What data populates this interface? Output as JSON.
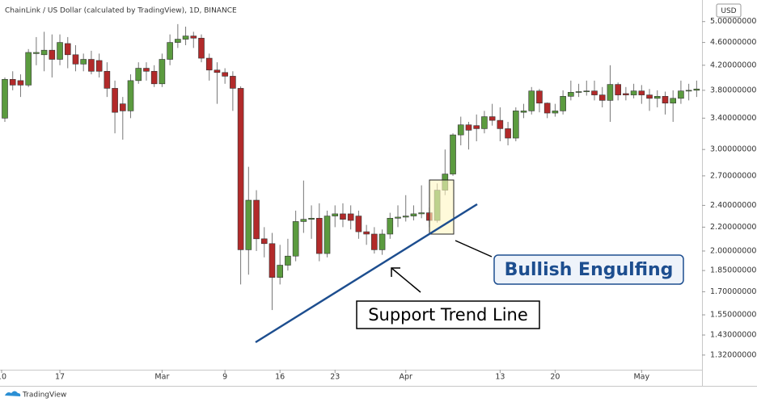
{
  "chart_data": {
    "type": "candlestick",
    "title": "ChainLink / US Dollar (calculated by TradingView), 1D, BINANCE",
    "currency": "USD",
    "logo_text": "TradingView",
    "annotations": [
      "Bullish Engulfing",
      "Support Trend Line"
    ],
    "log_scale": true,
    "grid": false,
    "up_color": "#5b9b3f",
    "down_color": "#b22a2a",
    "ylim": [
      1.245,
      5.45
    ],
    "yticks": [
      {
        "value": 1.32,
        "label": "1.32000000"
      },
      {
        "value": 1.43,
        "label": "1.43000000"
      },
      {
        "value": 1.55,
        "label": "1.55000000"
      },
      {
        "value": 1.7,
        "label": "1.70000000"
      },
      {
        "value": 1.85,
        "label": "1.85000000"
      },
      {
        "value": 2,
        "label": "2.00000000"
      },
      {
        "value": 2.2,
        "label": "2.20000000"
      },
      {
        "value": 2.4,
        "label": "2.40000000"
      },
      {
        "value": 2.7,
        "label": "2.70000000"
      },
      {
        "value": 3,
        "label": "3.00000000"
      },
      {
        "value": 3.4,
        "label": "3.40000000"
      },
      {
        "value": 3.8,
        "label": "3.80000000"
      },
      {
        "value": 4.2,
        "label": "4.20000000"
      },
      {
        "value": 4.6,
        "label": "4.60000000"
      },
      {
        "value": 5,
        "label": "5.00000000"
      }
    ],
    "categories": [
      "10",
      null,
      null,
      null,
      null,
      null,
      null,
      "17",
      null,
      null,
      null,
      null,
      null,
      null,
      null,
      null,
      null,
      null,
      null,
      null,
      "Mar",
      null,
      null,
      null,
      null,
      null,
      null,
      null,
      "9",
      null,
      null,
      null,
      null,
      null,
      null,
      "16",
      null,
      null,
      null,
      null,
      null,
      null,
      "23",
      null,
      null,
      null,
      null,
      null,
      null,
      null,
      null,
      "Apr",
      null,
      null,
      null,
      null,
      null,
      null,
      null,
      null,
      null,
      null,
      null,
      "13",
      null,
      null,
      null,
      null,
      null,
      null,
      "20",
      null,
      null,
      null,
      null,
      null,
      null,
      null,
      null,
      null,
      null,
      "May",
      null,
      null,
      null,
      null,
      null,
      null,
      null
    ],
    "open": [
      3.4,
      3.97,
      3.95,
      3.88,
      4.4,
      4.38,
      4.46,
      4.3,
      4.58,
      4.38,
      4.22,
      4.3,
      4.28,
      4.1,
      3.83,
      3.6,
      3.5,
      3.95,
      4.15,
      4.1,
      3.9,
      4.3,
      4.6,
      4.66,
      4.72,
      4.68,
      4.32,
      4.12,
      4.08,
      4.02,
      3.83,
      2.01,
      2.45,
      2.1,
      2.06,
      1.8,
      1.89,
      1.96,
      2.25,
      2.27,
      2.28,
      1.98,
      2.3,
      2.32,
      2.32,
      2.3,
      2.16,
      2.14,
      2.01,
      2.14,
      2.28,
      2.29,
      2.3,
      2.32,
      2.33,
      2.26,
      2.55,
      2.72,
      3.18,
      3.31,
      3.3,
      3.26,
      3.42,
      3.37,
      3.26,
      3.14,
      3.48,
      3.5,
      3.79,
      3.61,
      3.47,
      3.5,
      3.71,
      3.77,
      3.78,
      3.79,
      3.73,
      3.65,
      3.89,
      3.75,
      3.73,
      3.79,
      3.73,
      3.68,
      3.71,
      3.61,
      3.68,
      3.79,
      3.8
    ],
    "high": [
      4.0,
      4.1,
      4.05,
      4.48,
      4.7,
      4.8,
      4.75,
      4.75,
      4.7,
      4.55,
      4.4,
      4.45,
      4.4,
      4.25,
      3.95,
      3.7,
      4.05,
      4.25,
      4.25,
      4.2,
      4.4,
      4.75,
      4.95,
      4.9,
      4.8,
      4.75,
      4.4,
      4.25,
      4.15,
      4.1,
      3.86,
      2.8,
      2.55,
      2.2,
      2.15,
      2.05,
      2.1,
      2.35,
      2.65,
      2.4,
      2.42,
      2.35,
      2.4,
      2.42,
      2.4,
      2.35,
      2.22,
      2.2,
      2.18,
      2.33,
      2.4,
      2.5,
      2.4,
      2.6,
      2.38,
      2.62,
      3.0,
      3.2,
      3.42,
      3.35,
      3.45,
      3.5,
      3.6,
      3.55,
      3.35,
      3.55,
      3.6,
      3.85,
      3.82,
      3.62,
      3.6,
      3.8,
      3.95,
      3.9,
      3.95,
      3.95,
      3.85,
      4.2,
      3.92,
      3.85,
      3.9,
      3.88,
      3.82,
      3.8,
      3.78,
      3.8,
      3.95,
      3.9,
      3.95
    ],
    "low": [
      3.35,
      3.8,
      3.7,
      3.85,
      4.2,
      4.1,
      4.0,
      4.2,
      4.15,
      4.1,
      4.1,
      4.05,
      4.0,
      3.7,
      3.2,
      3.12,
      3.4,
      3.9,
      3.95,
      3.85,
      3.85,
      4.2,
      4.5,
      4.55,
      4.5,
      4.25,
      3.95,
      3.6,
      3.9,
      3.5,
      1.75,
      1.82,
      2.0,
      1.95,
      1.58,
      1.75,
      1.85,
      1.92,
      2.15,
      2.1,
      1.92,
      1.95,
      2.2,
      2.2,
      2.18,
      2.1,
      2.05,
      1.98,
      1.97,
      2.1,
      2.2,
      2.25,
      2.26,
      2.28,
      2.2,
      2.24,
      2.5,
      2.7,
      3.05,
      3.0,
      3.1,
      3.2,
      3.3,
      3.1,
      3.05,
      3.1,
      3.4,
      3.45,
      3.48,
      3.4,
      3.42,
      3.45,
      3.65,
      3.7,
      3.72,
      3.65,
      3.55,
      3.35,
      3.65,
      3.65,
      3.68,
      3.6,
      3.5,
      3.55,
      3.45,
      3.35,
      3.6,
      3.65,
      3.7
    ],
    "close": [
      3.97,
      3.88,
      3.88,
      4.42,
      4.42,
      4.46,
      4.3,
      4.6,
      4.38,
      4.22,
      4.3,
      4.1,
      4.1,
      3.83,
      3.48,
      3.5,
      3.95,
      4.15,
      4.1,
      3.9,
      4.3,
      4.6,
      4.66,
      4.72,
      4.68,
      4.32,
      4.12,
      4.08,
      4.02,
      3.83,
      2.01,
      2.45,
      2.1,
      2.06,
      1.8,
      1.89,
      1.96,
      2.25,
      2.27,
      2.28,
      1.98,
      2.3,
      2.32,
      2.27,
      2.26,
      2.16,
      2.14,
      2.01,
      2.14,
      2.28,
      2.29,
      2.3,
      2.32,
      2.33,
      2.26,
      2.55,
      2.72,
      3.18,
      3.31,
      3.24,
      3.26,
      3.42,
      3.37,
      3.26,
      3.14,
      3.5,
      3.5,
      3.79,
      3.61,
      3.47,
      3.5,
      3.71,
      3.77,
      3.78,
      3.79,
      3.73,
      3.65,
      3.89,
      3.73,
      3.73,
      3.79,
      3.73,
      3.68,
      3.71,
      3.61,
      3.68,
      3.79,
      3.8,
      3.82
    ]
  }
}
